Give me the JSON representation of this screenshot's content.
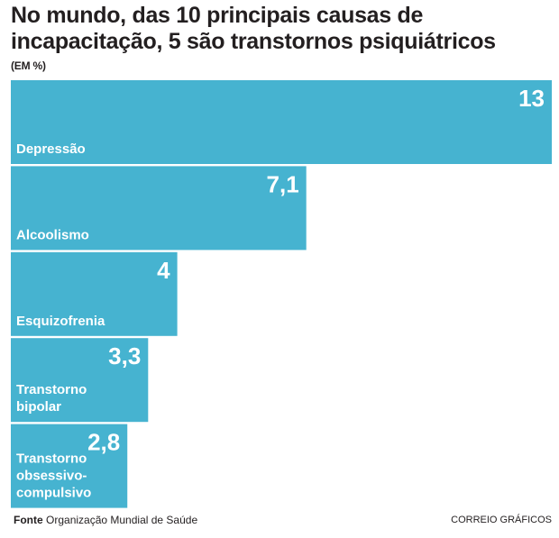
{
  "chart_data": {
    "type": "bar",
    "orientation": "horizontal",
    "title": "No mundo, das 10 principais causas de incapacitação, 5 são transtornos psiquiátricos",
    "unit": "(EM %)",
    "categories": [
      [
        "Depressão"
      ],
      [
        "Alcoolismo"
      ],
      [
        "Esquizofrenia"
      ],
      [
        "Transtorno",
        "bipolar"
      ],
      [
        "Transtorno",
        "obsessivo-",
        "compulsivo"
      ]
    ],
    "values": [
      13,
      7.1,
      4,
      3.3,
      2.8
    ],
    "value_labels": [
      "13",
      "7,1",
      "4",
      "3,3",
      "2,8"
    ],
    "bar_color": "#46b3d0",
    "xlim": [
      0,
      13
    ]
  },
  "footer": {
    "source_label": "Fonte",
    "source_text": "Organização Mundial de Saúde",
    "credit": "CORREIO GRÁFICOS"
  }
}
